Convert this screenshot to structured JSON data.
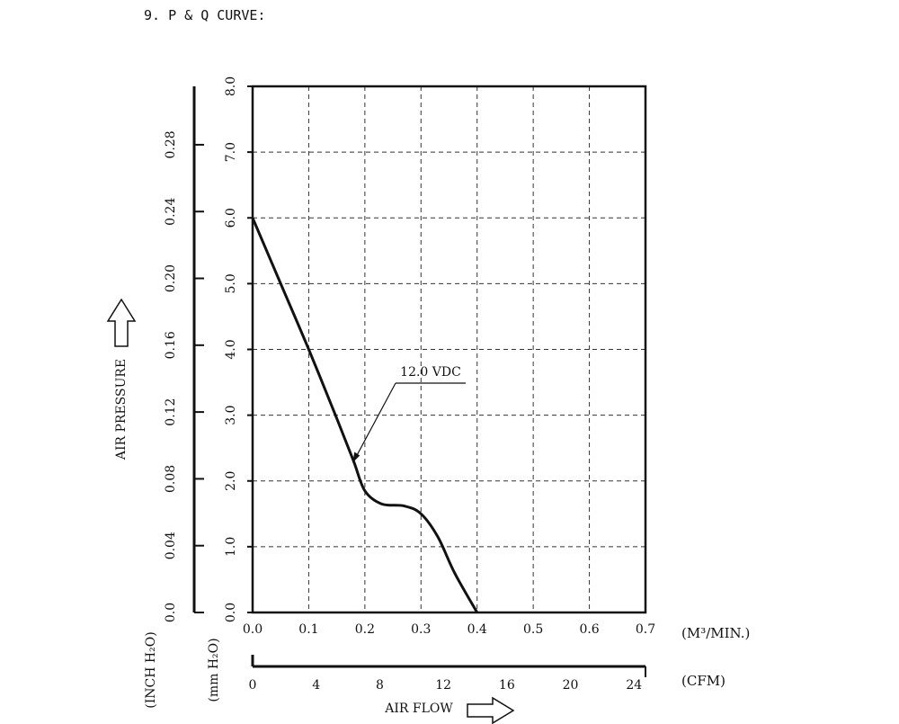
{
  "page": {
    "heading": "9. P & Q CURVE:"
  },
  "chart_data": {
    "type": "line",
    "title": "",
    "x_primary": {
      "unit_label": "(M³/MIN.)",
      "ticks": [
        0.0,
        0.1,
        0.2,
        0.3,
        0.4,
        0.5,
        0.6,
        0.7
      ],
      "tick_labels": [
        "0.0",
        "0.1",
        "0.2",
        "0.3",
        "0.4",
        "0.5",
        "0.6",
        "0.7"
      ],
      "range": [
        0,
        0.7
      ]
    },
    "x_secondary": {
      "unit_label": "(CFM)",
      "tick_labels": [
        "0",
        "4",
        "8",
        "12",
        "16",
        "20",
        "24"
      ],
      "ticks": [
        0,
        4,
        8,
        12,
        16,
        20,
        24
      ]
    },
    "xlabel": "AIR FLOW",
    "y_primary": {
      "unit_label": "(mm H₂O)",
      "ticks": [
        0,
        1,
        2,
        3,
        4,
        5,
        6,
        7,
        8
      ],
      "tick_labels": [
        "0.0",
        "1.0",
        "2.0",
        "3.0",
        "4.0",
        "5.0",
        "6.0",
        "7.0",
        "8.0"
      ],
      "range": [
        0,
        8
      ]
    },
    "y_secondary": {
      "unit_label": "(INCH H₂O)",
      "tick_labels": [
        "0.0",
        "0.04",
        "0.08",
        "0.12",
        "0.16",
        "0.20",
        "0.24",
        "0.28"
      ],
      "ticks": [
        0,
        0.04,
        0.08,
        0.12,
        0.16,
        0.2,
        0.24,
        0.28
      ]
    },
    "ylabel": "AIR PRESSURE",
    "grid": true,
    "series": [
      {
        "name": "12.0 VDC",
        "x": [
          0.0,
          0.05,
          0.1,
          0.15,
          0.18,
          0.2,
          0.23,
          0.27,
          0.3,
          0.33,
          0.36,
          0.4
        ],
        "y": [
          6.0,
          5.0,
          4.0,
          2.95,
          2.3,
          1.85,
          1.65,
          1.62,
          1.5,
          1.15,
          0.6,
          0.0
        ]
      }
    ],
    "annotations": [
      {
        "text": "12.0 VDC",
        "points_to": {
          "x": 0.175,
          "y": 2.25
        }
      }
    ]
  }
}
